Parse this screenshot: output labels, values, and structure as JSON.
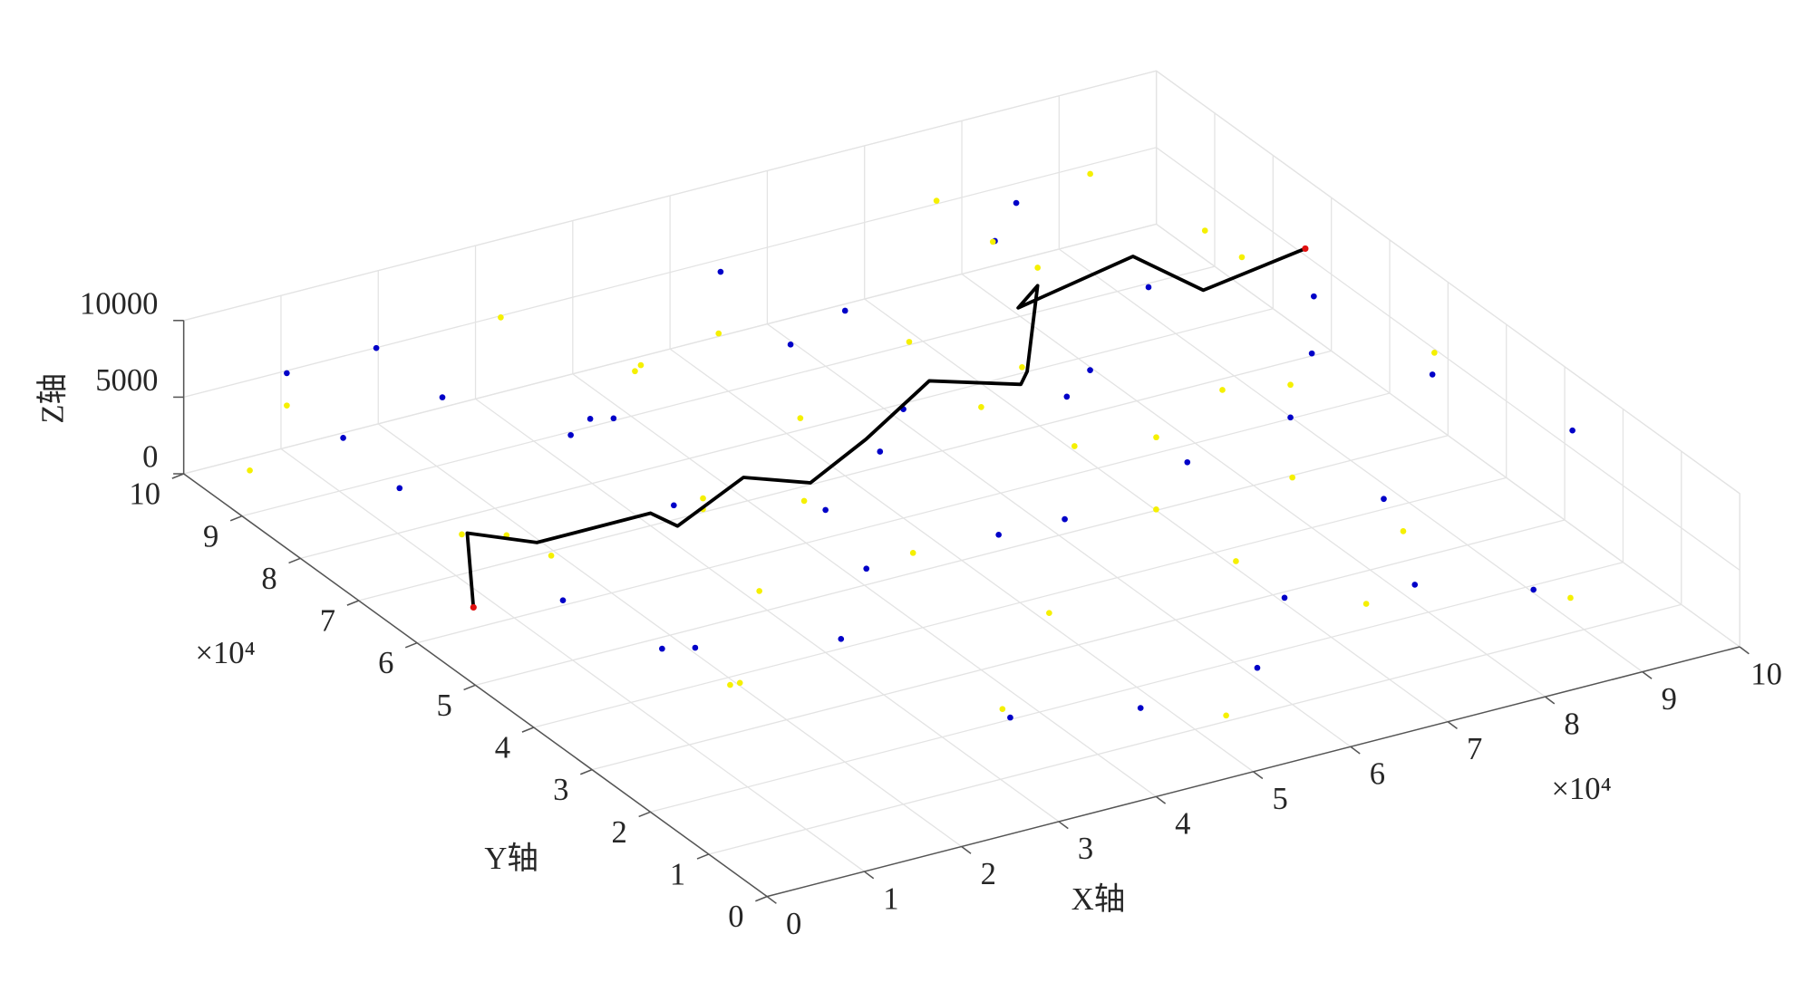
{
  "chart_data": {
    "type": "scatter3d",
    "x_label": "X轴",
    "y_label": "Y轴",
    "z_label": "Z轴",
    "x_multiplier": "×10⁴",
    "y_multiplier": "×10⁴",
    "xlim": [
      0,
      100000
    ],
    "ylim": [
      0,
      100000
    ],
    "zlim": [
      0,
      10000
    ],
    "xticks": [
      0,
      {
        "value": 10000,
        "label": "1"
      },
      {
        "value": 20000,
        "label": "2"
      },
      {
        "value": 30000,
        "label": "3"
      },
      {
        "value": 40000,
        "label": "4"
      },
      {
        "value": 50000,
        "label": "5"
      },
      {
        "value": 60000,
        "label": "6"
      },
      {
        "value": 70000,
        "label": "7"
      },
      {
        "value": 80000,
        "label": "8"
      },
      {
        "value": 90000,
        "label": "9"
      },
      {
        "value": 100000,
        "label": "10"
      }
    ],
    "yticks": [
      0,
      {
        "value": 10000,
        "label": "1"
      },
      {
        "value": 20000,
        "label": "2"
      },
      {
        "value": 30000,
        "label": "3"
      },
      {
        "value": 40000,
        "label": "4"
      },
      {
        "value": 50000,
        "label": "5"
      },
      {
        "value": 60000,
        "label": "6"
      },
      {
        "value": 70000,
        "label": "7"
      },
      {
        "value": 80000,
        "label": "8"
      },
      {
        "value": 90000,
        "label": "9"
      },
      {
        "value": 100000,
        "label": "10"
      }
    ],
    "zticks": [
      0,
      5000,
      10000
    ],
    "grid": true,
    "series": [
      {
        "type": "scatter",
        "color": "#0000c8",
        "values": [
          [
            5200,
            91000,
            8200
          ],
          [
            81000,
            96000,
            3100
          ],
          [
            23000,
            72000,
            6500
          ],
          [
            64000,
            18000,
            4100
          ],
          [
            12000,
            55000,
            2200
          ],
          [
            93000,
            41000,
            7600
          ],
          [
            37000,
            88000,
            900
          ],
          [
            71000,
            63000,
            5400
          ],
          [
            48000,
            29000,
            8800
          ],
          [
            86000,
            12000,
            2700
          ],
          [
            18000,
            97000,
            6100
          ],
          [
            59000,
            75000,
            1500
          ],
          [
            30000,
            40000,
            9300
          ],
          [
            97000,
            68000,
            4600
          ],
          [
            42000,
            6000,
            3800
          ],
          [
            76000,
            84000,
            9700
          ],
          [
            9000,
            33000,
            5600
          ],
          [
            55000,
            52000,
            300
          ],
          [
            66000,
            38000,
            7100
          ],
          [
            27000,
            61000,
            4300
          ],
          [
            88000,
            57000,
            1200
          ],
          [
            14000,
            79000,
            8500
          ],
          [
            51000,
            93000,
            6800
          ],
          [
            34000,
            15000,
            2000
          ],
          [
            79000,
            26000,
            5900
          ],
          [
            62000,
            90000,
            3300
          ],
          [
            3000,
            68000,
            7400
          ],
          [
            45000,
            71000,
            9100
          ],
          [
            92000,
            88000,
            500
          ],
          [
            22000,
            24000,
            6600
          ],
          [
            69000,
            4000,
            8000
          ],
          [
            39000,
            48000,
            1800
          ],
          [
            83000,
            45000,
            9500
          ],
          [
            57000,
            11000,
            2600
          ],
          [
            8000,
            86000,
            4900
          ],
          [
            74000,
            72000,
            700
          ],
          [
            47000,
            59000,
            5100
          ],
          [
            31000,
            82000,
            3500
          ],
          [
            96000,
            22000,
            8700
          ],
          [
            19000,
            44000,
            1000
          ]
        ]
      },
      {
        "type": "scatter",
        "color": "#f5f000",
        "values": [
          [
            11000,
            63000,
            4400
          ],
          [
            58000,
            44000,
            7800
          ],
          [
            84000,
            31000,
            1600
          ],
          [
            26000,
            89000,
            9000
          ],
          [
            73000,
            55000,
            2900
          ],
          [
            41000,
            20000,
            6300
          ],
          [
            95000,
            77000,
            5000
          ],
          [
            6000,
            47000,
            8300
          ],
          [
            52000,
            81000,
            400
          ],
          [
            67000,
            9000,
            5700
          ],
          [
            33000,
            66000,
            2400
          ],
          [
            89000,
            93000,
            7000
          ],
          [
            16000,
            28000,
            9600
          ],
          [
            78000,
            40000,
            3600
          ],
          [
            44000,
            95000,
            1300
          ],
          [
            61000,
            58000,
            8600
          ],
          [
            2000,
            92000,
            2100
          ],
          [
            36000,
            35000,
            6900
          ],
          [
            87000,
            67000,
            400
          ],
          [
            24000,
            51000,
            7300
          ],
          [
            70000,
            78000,
            9800
          ],
          [
            49000,
            3000,
            3000
          ],
          [
            98000,
            49000,
            6000
          ],
          [
            13000,
            74000,
            1100
          ],
          [
            55000,
            25000,
            9400
          ],
          [
            80000,
            87000,
            4000
          ],
          [
            29000,
            8000,
            5300
          ],
          [
            64000,
            70000,
            2200
          ],
          [
            7000,
            18000,
            7700
          ],
          [
            46000,
            85000,
            5800
          ],
          [
            91000,
            14000,
            800
          ],
          [
            38000,
            57000,
            3900
          ],
          [
            75000,
            96000,
            6700
          ],
          [
            20000,
            38000,
            200
          ],
          [
            53000,
            64000,
            9900
          ],
          [
            85000,
            52000,
            5200
          ],
          [
            10000,
            99000,
            3100
          ],
          [
            68000,
            33000,
            1700
          ],
          [
            32000,
            76000,
            8100
          ],
          [
            99000,
            90000,
            2500
          ]
        ]
      },
      {
        "type": "line",
        "color": "#000000",
        "endpoint_color": "#e01010",
        "values": [
          [
            6400,
            61000,
            1000
          ],
          [
            12900,
            72900,
            1500
          ],
          [
            16400,
            66800,
            2000
          ],
          [
            27300,
            65500,
            2500
          ],
          [
            27200,
            60700,
            3000
          ],
          [
            36500,
            64900,
            3500
          ],
          [
            40200,
            59600,
            4000
          ],
          [
            48200,
            63400,
            4500
          ],
          [
            58300,
            69400,
            5000
          ],
          [
            64900,
            64700,
            5000
          ],
          [
            65900,
            65300,
            5500
          ],
          [
            74900,
            78500,
            6000
          ],
          [
            71100,
            75500,
            6000
          ],
          [
            84400,
            78000,
            6500
          ],
          [
            85400,
            67600,
            7000
          ],
          [
            97500,
            70300,
            7000
          ]
        ]
      }
    ]
  }
}
